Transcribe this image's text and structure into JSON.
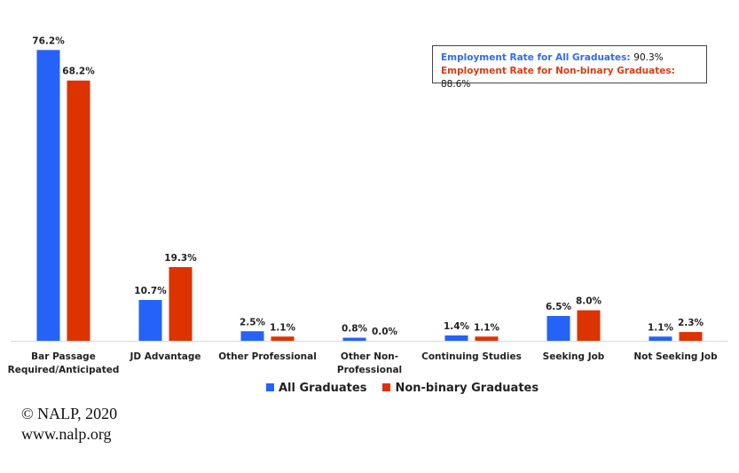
{
  "colors": {
    "all": "#2462f8",
    "nonbinary": "#dd3300"
  },
  "employment_box": {
    "all_label": "Employment Rate for All Graduates:",
    "all_value": "90.3%",
    "nb_label": "Employment Rate for Non-binary Graduates:",
    "nb_value": "88.6%"
  },
  "credit": {
    "line1": "© NALP, 2020",
    "line2": "www.nalp.org"
  },
  "chart_data": {
    "type": "bar",
    "title": "",
    "xlabel": "",
    "ylabel": "",
    "ylim": [
      0,
      80
    ],
    "grid": false,
    "legend_position": "bottom",
    "categories": [
      [
        "Bar Passage",
        "Required/Anticipated"
      ],
      [
        "JD Advantage"
      ],
      [
        "Other Professional"
      ],
      [
        "Other Non-",
        "Professional"
      ],
      [
        "Continuing Studies"
      ],
      [
        "Seeking Job"
      ],
      [
        "Not Seeking Job"
      ]
    ],
    "series": [
      {
        "name": "All Graduates",
        "values": [
          76.2,
          10.7,
          2.5,
          0.8,
          1.4,
          6.5,
          1.1
        ],
        "labels": [
          "76.2%",
          "10.7%",
          "2.5%",
          "0.8%",
          "1.4%",
          "6.5%",
          "1.1%"
        ]
      },
      {
        "name": "Non-binary Graduates",
        "values": [
          68.2,
          19.3,
          1.1,
          0.0,
          1.1,
          8.0,
          2.3
        ],
        "labels": [
          "68.2%",
          "19.3%",
          "1.1%",
          "0.0%",
          "1.1%",
          "8.0%",
          "2.3%"
        ]
      }
    ]
  }
}
